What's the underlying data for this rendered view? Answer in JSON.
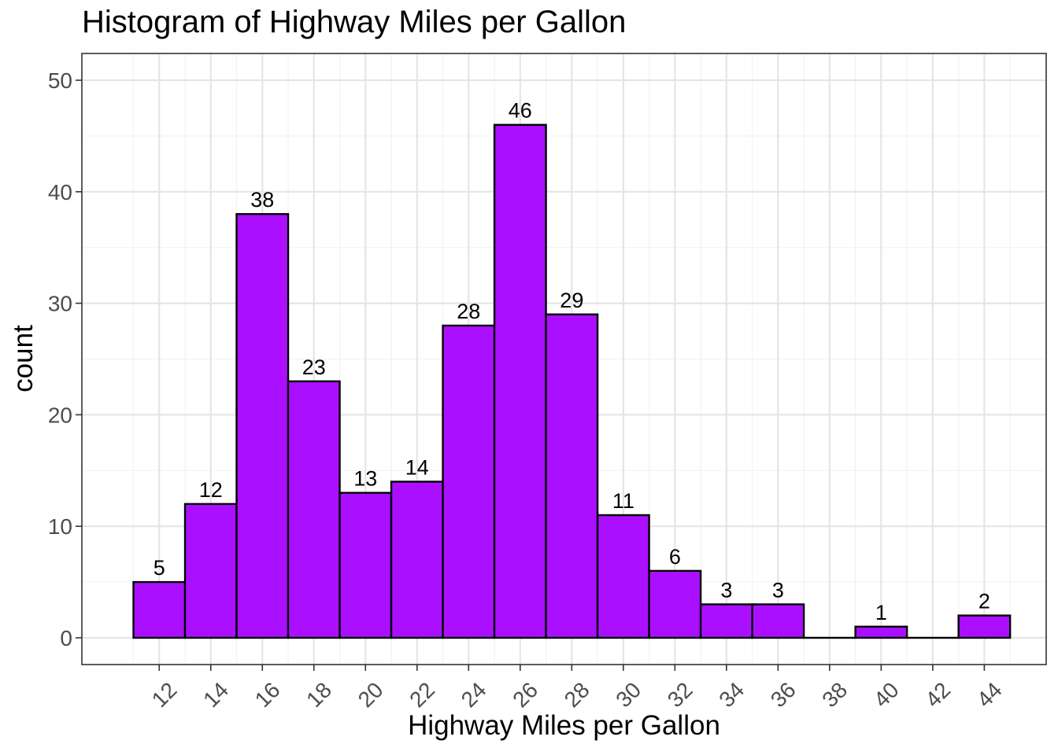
{
  "chart_data": {
    "type": "bar",
    "title": "Histogram of Highway Miles per Gallon",
    "xlabel": "Highway Miles per Gallon",
    "ylabel": "count",
    "bin_width": 2,
    "bins": [
      {
        "center": 12,
        "count": 5
      },
      {
        "center": 14,
        "count": 12
      },
      {
        "center": 16,
        "count": 38
      },
      {
        "center": 18,
        "count": 23
      },
      {
        "center": 20,
        "count": 13
      },
      {
        "center": 22,
        "count": 14
      },
      {
        "center": 24,
        "count": 28
      },
      {
        "center": 26,
        "count": 46
      },
      {
        "center": 28,
        "count": 29
      },
      {
        "center": 30,
        "count": 11
      },
      {
        "center": 32,
        "count": 6
      },
      {
        "center": 34,
        "count": 3
      },
      {
        "center": 36,
        "count": 3
      },
      {
        "center": 38,
        "count": 0
      },
      {
        "center": 40,
        "count": 1
      },
      {
        "center": 42,
        "count": 0
      },
      {
        "center": 44,
        "count": 2
      }
    ],
    "data_labels": [
      "5",
      "12",
      "38",
      "23",
      "13",
      "14",
      "28",
      "46",
      "29",
      "11",
      "6",
      "3",
      "3",
      "",
      "1",
      "",
      "2"
    ],
    "xlim": [
      9.0,
      46.4
    ],
    "ylim": [
      -2.4,
      52.4
    ],
    "x_ticks": [
      "12",
      "14",
      "16",
      "18",
      "20",
      "22",
      "24",
      "26",
      "28",
      "30",
      "32",
      "34",
      "36",
      "38",
      "40",
      "42",
      "44"
    ],
    "y_ticks": [
      "0",
      "10",
      "20",
      "30",
      "40",
      "50"
    ],
    "grid": true,
    "legend": "none",
    "colors": {
      "bar_fill": "#AA10FF",
      "bar_stroke": "#000000",
      "grid_major": "#e5e5e5",
      "grid_minor": "#f2f2f2",
      "panel_border": "#333333",
      "tick_text": "#4d4d4d"
    }
  }
}
